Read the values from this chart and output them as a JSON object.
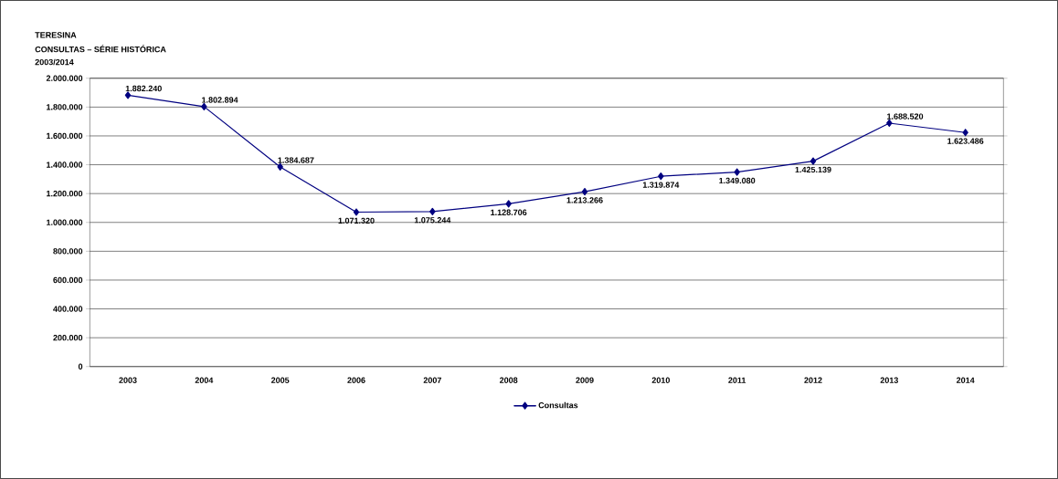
{
  "chart_data": {
    "type": "line",
    "title": "TERESINA",
    "subtitle": "CONSULTAS – SÉRIE HISTÓRICA\n2003/2014",
    "categories": [
      "2003",
      "2004",
      "2005",
      "2006",
      "2007",
      "2008",
      "2009",
      "2010",
      "2011",
      "2012",
      "2013",
      "2014"
    ],
    "series": [
      {
        "name": "Consultas",
        "color": "#000080",
        "values": [
          1882240,
          1802894,
          1384687,
          1071320,
          1075244,
          1128706,
          1213266,
          1319874,
          1349080,
          1425139,
          1688520,
          1623486
        ],
        "value_labels": [
          "1.882.240",
          "1.802.894",
          "1.384.687",
          "1.071.320",
          "1.075.244",
          "1.128.706",
          "1.213.266",
          "1.319.874",
          "1.349.080",
          "1.425.139",
          "1.688.520",
          "1.623.486"
        ]
      }
    ],
    "ylim": [
      0,
      2000000
    ],
    "yticks": [
      {
        "value": 0,
        "label": "0"
      },
      {
        "value": 200000,
        "label": "200.000"
      },
      {
        "value": 400000,
        "label": "400.000"
      },
      {
        "value": 600000,
        "label": "600.000"
      },
      {
        "value": 800000,
        "label": "800.000"
      },
      {
        "value": 1000000,
        "label": "1.000.000"
      },
      {
        "value": 1200000,
        "label": "1.200.000"
      },
      {
        "value": 1400000,
        "label": "1.400.000"
      },
      {
        "value": 1600000,
        "label": "1.600.000"
      },
      {
        "value": 1800000,
        "label": "1.800.000"
      },
      {
        "value": 2000000,
        "label": "2.000.000"
      }
    ],
    "grid": "y",
    "legend": "bottom",
    "marker": "diamond",
    "line_style": "solid"
  }
}
